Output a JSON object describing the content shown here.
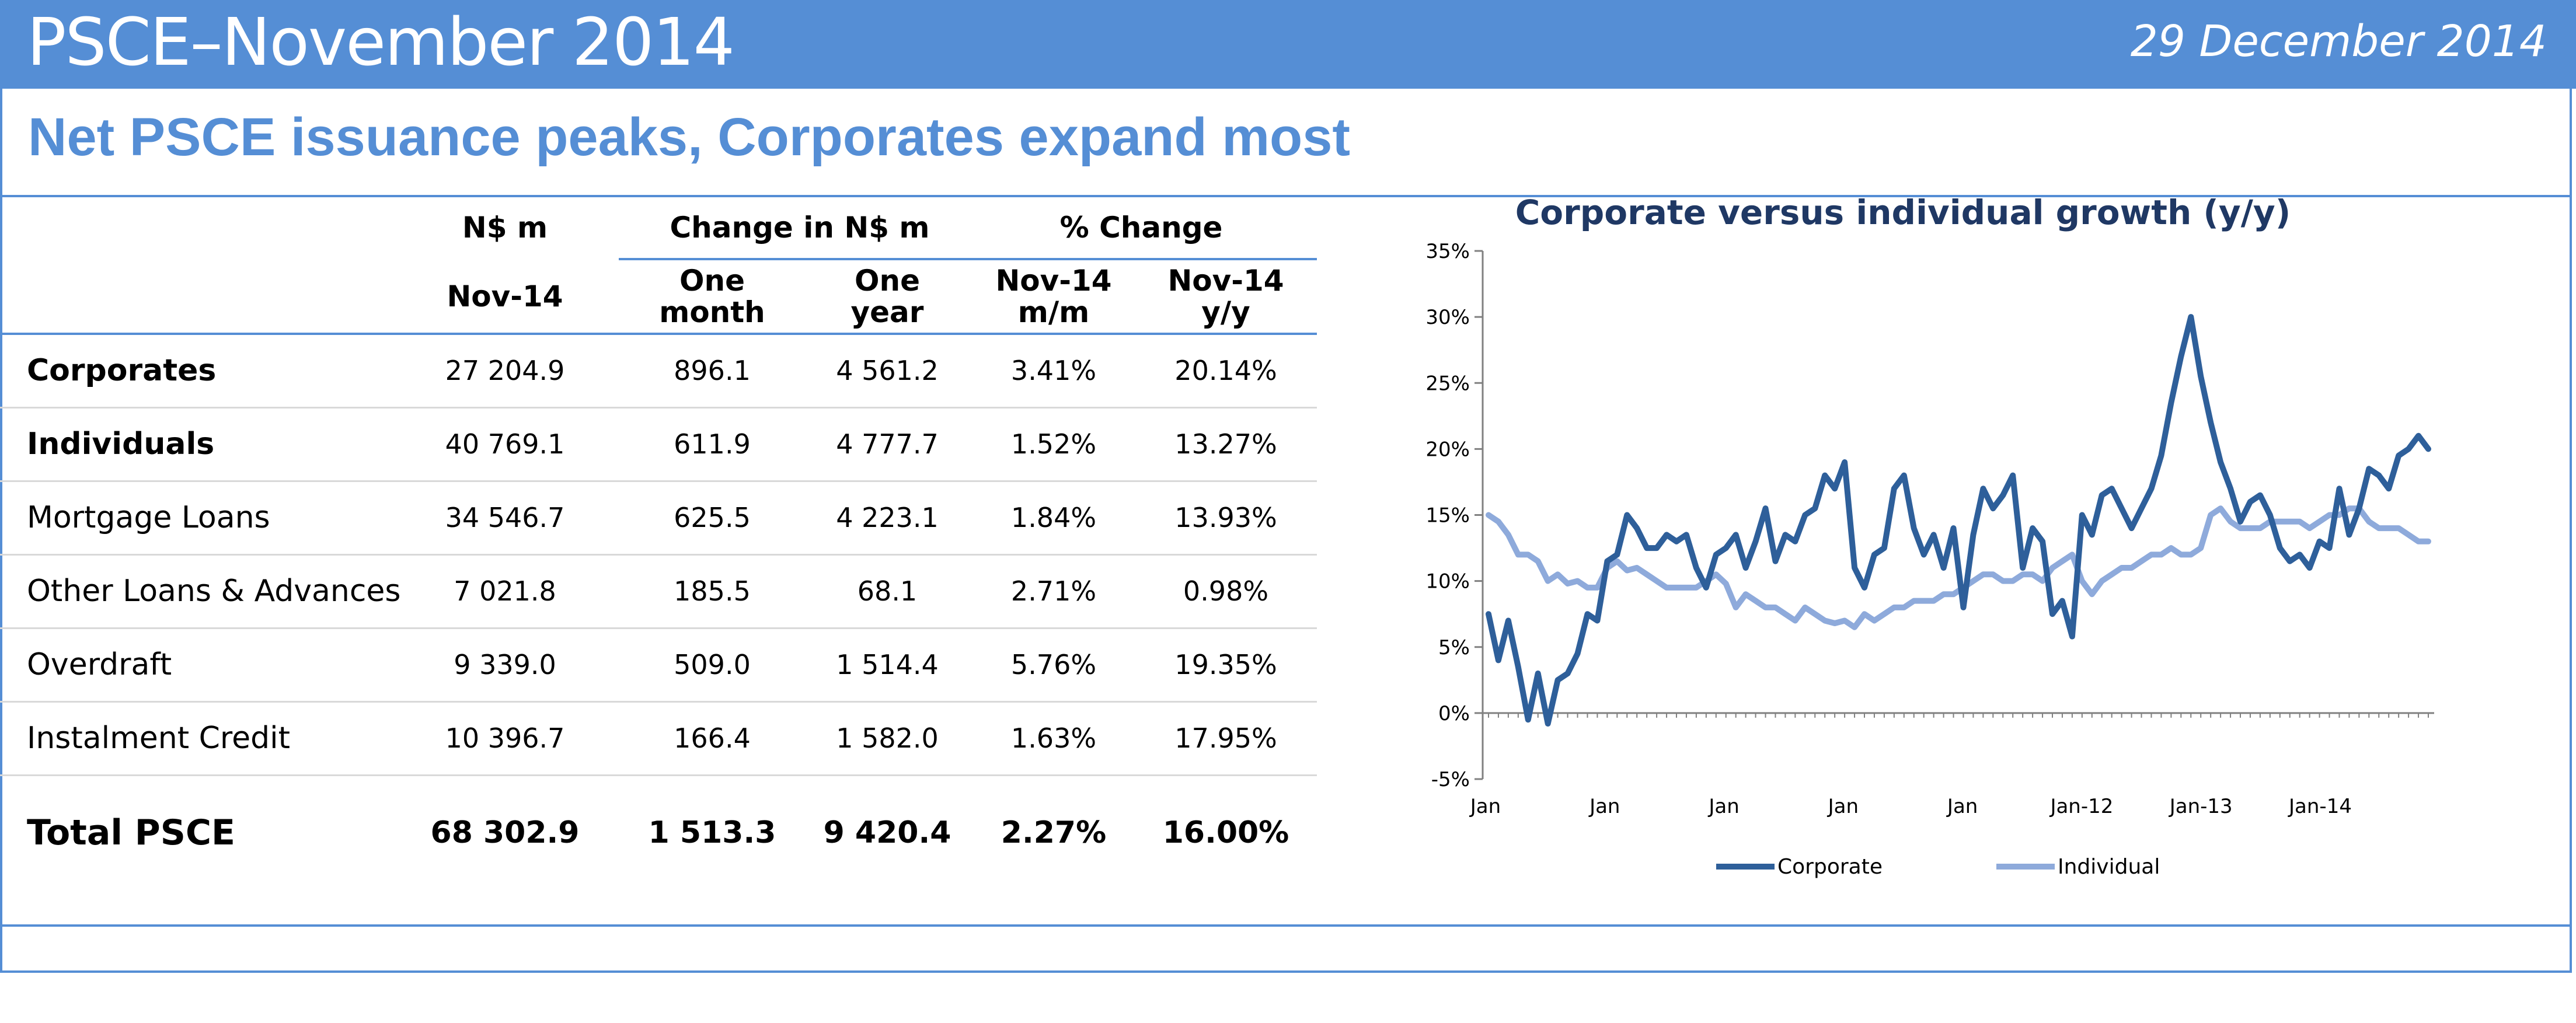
{
  "header": {
    "title": "PSCE–November 2014",
    "date": "29 December 2014"
  },
  "subtitle": "Net PSCE issuance peaks, Corporates expand most",
  "table": {
    "group_headers": [
      "N$ m",
      "Change in N$ m",
      "% Change"
    ],
    "columns": [
      "Nov-14",
      "One\nmonth",
      "One\nyear",
      "Nov-14\nm/m",
      "Nov-14\ny/y"
    ],
    "rows": [
      {
        "label": "Corporates",
        "bold": true,
        "values": [
          "27 204.9",
          "896.1",
          "4 561.2",
          "3.41%",
          "20.14%"
        ]
      },
      {
        "label": "Individuals",
        "bold": true,
        "values": [
          "40 769.1",
          "611.9",
          "4 777.7",
          "1.52%",
          "13.27%"
        ]
      },
      {
        "label": "Mortgage Loans",
        "bold": false,
        "values": [
          "34 546.7",
          "625.5",
          "4 223.1",
          "1.84%",
          "13.93%"
        ]
      },
      {
        "label": "Other Loans & Advances",
        "bold": false,
        "values": [
          "7 021.8",
          "185.5",
          "68.1",
          "2.71%",
          "0.98%"
        ]
      },
      {
        "label": "Overdraft",
        "bold": false,
        "values": [
          "9 339.0",
          "509.0",
          "1 514.4",
          "5.76%",
          "19.35%"
        ]
      },
      {
        "label": "Instalment Credit",
        "bold": false,
        "values": [
          "10 396.7",
          "166.4",
          "1 582.0",
          "1.63%",
          "17.95%"
        ]
      }
    ],
    "total": {
      "label": "Total PSCE",
      "values": [
        "68 302.9",
        "1 513.3",
        "9 420.4",
        "2.27%",
        "16.00%"
      ]
    }
  },
  "chart_data": {
    "type": "line",
    "title": "Corporate versus individual growth (y/y)",
    "xlabel": "",
    "ylabel": "",
    "ylim": [
      -5,
      35
    ],
    "yticks": [
      "35%",
      "30%",
      "25%",
      "20%",
      "15%",
      "10%",
      "5%",
      "0%",
      "-5%"
    ],
    "xticks": [
      "Jan",
      "Jan",
      "Jan",
      "Jan",
      "Jan",
      "Jan-12",
      "Jan-13",
      "Jan-14"
    ],
    "grid": false,
    "legend": "bottom",
    "colors": {
      "Corporate": "#2e5f9a",
      "Individual": "#8eaadb"
    },
    "series": [
      {
        "name": "Corporate",
        "values": [
          7.5,
          4.0,
          7.0,
          3.5,
          -0.5,
          3.0,
          -0.8,
          2.5,
          3.0,
          4.5,
          7.5,
          7.0,
          11.5,
          12.0,
          15.0,
          14.0,
          12.5,
          12.5,
          13.5,
          13.0,
          13.5,
          11.0,
          9.5,
          12.0,
          12.5,
          13.5,
          11.0,
          13.0,
          15.5,
          11.5,
          13.5,
          13.0,
          15.0,
          15.5,
          18.0,
          17.0,
          19.0,
          11.0,
          9.5,
          12.0,
          12.5,
          17.0,
          18.0,
          14.0,
          12.0,
          13.5,
          11.0,
          14.0,
          8.0,
          13.5,
          17.0,
          15.5,
          16.5,
          18.0,
          11.0,
          14.0,
          13.0,
          7.5,
          8.5,
          5.8,
          15.0,
          13.5,
          16.5,
          17.0,
          15.5,
          14.0,
          15.5,
          17.0,
          19.5,
          23.5,
          27.0,
          30.0,
          25.5,
          22.0,
          19.0,
          17.0,
          14.5,
          16.0,
          16.5,
          15.0,
          12.5,
          11.5,
          12.0,
          11.0,
          13.0,
          12.5,
          17.0,
          13.5,
          15.5,
          18.5,
          18.0,
          17.0,
          19.5,
          20.0,
          21.0,
          20.0
        ]
      },
      {
        "name": "Individual",
        "values": [
          15.0,
          14.5,
          13.5,
          12.0,
          12.0,
          11.5,
          10.0,
          10.5,
          9.8,
          10.0,
          9.5,
          9.5,
          11.0,
          11.5,
          10.8,
          11.0,
          10.5,
          10.0,
          9.5,
          9.5,
          9.5,
          9.5,
          10.0,
          10.5,
          9.8,
          8.0,
          9.0,
          8.5,
          8.0,
          8.0,
          7.5,
          7.0,
          8.0,
          7.5,
          7.0,
          6.8,
          7.0,
          6.5,
          7.5,
          7.0,
          7.5,
          8.0,
          8.0,
          8.5,
          8.5,
          8.5,
          9.0,
          9.0,
          9.5,
          10.0,
          10.5,
          10.5,
          10.0,
          10.0,
          10.5,
          10.5,
          10.0,
          11.0,
          11.5,
          12.0,
          10.0,
          9.0,
          10.0,
          10.5,
          11.0,
          11.0,
          11.5,
          12.0,
          12.0,
          12.5,
          12.0,
          12.0,
          12.5,
          15.0,
          15.5,
          14.5,
          14.0,
          14.0,
          14.0,
          14.5,
          14.5,
          14.5,
          14.5,
          14.0,
          14.5,
          15.0,
          15.0,
          15.5,
          15.5,
          14.5,
          14.0,
          14.0,
          14.0,
          13.5,
          13.0,
          13.0
        ]
      }
    ]
  }
}
